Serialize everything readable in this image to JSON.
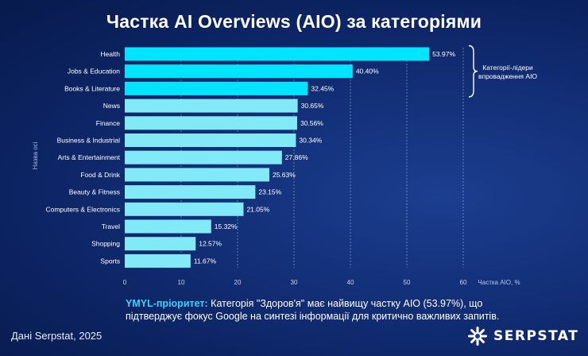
{
  "title": "Частка AI Overviews (AIO) за категоріями",
  "chart_data": {
    "type": "bar",
    "orientation": "horizontal",
    "categories": [
      "Health",
      "Jobs & Education",
      "Books & Literature",
      "News",
      "Finance",
      "Business & Industrial",
      "Arts & Entertainment",
      "Food & Drink",
      "Beauty & Fitness",
      "Computers & Electronics",
      "Travel",
      "Shopping",
      "Sports"
    ],
    "values": [
      53.97,
      40.4,
      32.45,
      30.65,
      30.56,
      30.34,
      27.86,
      25.63,
      23.15,
      21.05,
      15.32,
      12.57,
      11.67
    ],
    "value_labels": [
      "53.97%",
      "40.40%",
      "32.45%",
      "30.65%",
      "30.56%",
      "30.34%",
      "27.86%",
      "25.63%",
      "23.15%",
      "21.05%",
      "15.32%",
      "12.57%",
      "11.67%"
    ],
    "xlabel": "Частка AIO, %",
    "ylabel": "Назва осі",
    "xlim": [
      0,
      60
    ],
    "xticks": [
      0,
      10,
      20,
      30,
      40,
      50,
      60
    ],
    "grid": "vertical dashed",
    "colors": {
      "top3": "#00e5ff",
      "rest": "#82e9f7"
    },
    "annotation": {
      "text_line1": "Категорії-лідери",
      "text_line2": "впровадження AIO",
      "spans": [
        "Health",
        "Books & Literature"
      ]
    }
  },
  "footnote": {
    "lead": "YMYL-пріоритет:",
    "text": " Категорія \"Здоров'я\" має найвищу частку AIO (53.97%), що підтверджує фокус Google на синтезі інформації для критично важливих запитів."
  },
  "source": "Дані Serpstat, 2025",
  "logo": {
    "text": "SERPSTAT",
    "icon": "serpstat-logo-icon"
  }
}
